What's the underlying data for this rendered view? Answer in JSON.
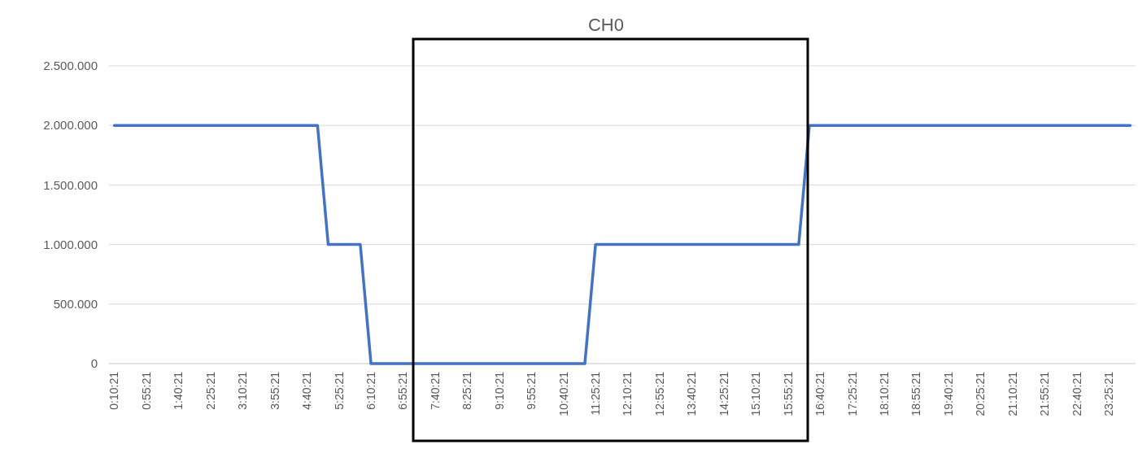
{
  "chart_data": {
    "type": "line",
    "title": "CH0",
    "categories": [
      "0:10:21",
      null,
      null,
      "0:55:21",
      null,
      null,
      "1:40:21",
      null,
      null,
      "2:25:21",
      null,
      null,
      "3:10:21",
      null,
      null,
      "3:55:21",
      null,
      null,
      "4:40:21",
      null,
      null,
      "5:25:21",
      null,
      null,
      "6:10:21",
      null,
      null,
      "6:55:21",
      null,
      null,
      "7:40:21",
      null,
      null,
      "8:25:21",
      null,
      null,
      "9:10:21",
      null,
      null,
      "9:55:21",
      null,
      null,
      "10:40:21",
      null,
      null,
      "11:25:21",
      null,
      null,
      "12:10:21",
      null,
      null,
      "12:55:21",
      null,
      null,
      "13:40:21",
      null,
      null,
      "14:25:21",
      null,
      null,
      "15:10:21",
      null,
      null,
      "15:55:21",
      null,
      null,
      "16:40:21",
      null,
      null,
      "17:25:21",
      null,
      null,
      "18:10:21",
      null,
      null,
      "18:55:21",
      null,
      null,
      "19:40:21",
      null,
      null,
      "20:25:21",
      null,
      null,
      "21:10:21",
      null,
      null,
      "21:55:21",
      null,
      null,
      "22:40:21",
      null,
      null,
      "23:25:21",
      null,
      null
    ],
    "series": [
      {
        "color": "#4472c4",
        "values": [
          2000000,
          2000000,
          2000000,
          2000000,
          2000000,
          2000000,
          2000000,
          2000000,
          2000000,
          2000000,
          2000000,
          2000000,
          2000000,
          2000000,
          2000000,
          2000000,
          2000000,
          2000000,
          2000000,
          2000000,
          1000000,
          1000000,
          1000000,
          1000000,
          0,
          0,
          0,
          0,
          0,
          0,
          0,
          0,
          0,
          0,
          0,
          0,
          0,
          0,
          0,
          0,
          0,
          0,
          0,
          0,
          0,
          1000000,
          1000000,
          1000000,
          1000000,
          1000000,
          1000000,
          1000000,
          1000000,
          1000000,
          1000000,
          1000000,
          1000000,
          1000000,
          1000000,
          1000000,
          1000000,
          1000000,
          1000000,
          1000000,
          1000000,
          2000000,
          2000000,
          2000000,
          2000000,
          2000000,
          2000000,
          2000000,
          2000000,
          2000000,
          2000000,
          2000000,
          2000000,
          2000000,
          2000000,
          2000000,
          2000000,
          2000000,
          2000000,
          2000000,
          2000000,
          2000000,
          2000000,
          2000000,
          2000000,
          2000000,
          2000000,
          2000000,
          2000000,
          2000000,
          2000000,
          2000000
        ]
      }
    ],
    "ylim": [
      0,
      2500000
    ],
    "yticks": [
      {
        "value": 0,
        "label": "0"
      },
      {
        "value": 500000,
        "label": "500.000"
      },
      {
        "value": 1000000,
        "label": "1.000.000"
      },
      {
        "value": 1500000,
        "label": "1.500.000"
      },
      {
        "value": 2000000,
        "label": "2.000.000"
      },
      {
        "value": 2500000,
        "label": "2.500.000"
      }
    ],
    "grid": "y",
    "marker": "none",
    "line_style": "solid"
  }
}
